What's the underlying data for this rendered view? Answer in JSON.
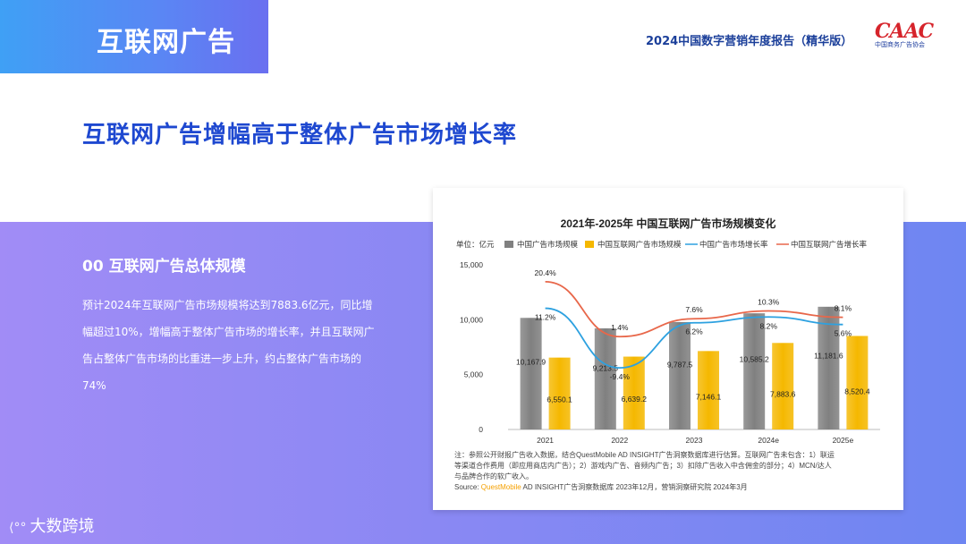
{
  "header": {
    "tab_title": "互联网广告",
    "report_title": "2024中国数字营销年度报告（精华版）",
    "logo_text": "CAAC",
    "logo_sub": "中国商务广告协会"
  },
  "headline": "互联网广告增幅高于整体广告市场增长率",
  "section": {
    "title": "00  互联网广告总体规模",
    "paragraph": "预计2024年互联网广告市场规模将达到7883.6亿元，同比增幅超过10%，增幅高于整体广告市场的增长率，并且互联网广告占整体广告市场的比重进一步上升，约占整体广告市场的74%"
  },
  "footer": {
    "brand": "大数跨境"
  },
  "colors": {
    "accent_blue": "#1e48d0",
    "gray_bar": "#808080",
    "yellow_bar": "#f5b800",
    "blue_line": "#2da1e0",
    "orange_line": "#e8674a"
  },
  "chart_data": {
    "type": "bar",
    "title": "2021年-2025年 中国互联网广告市场规模变化",
    "unit_label": "单位：亿元",
    "categories": [
      "2021",
      "2022",
      "2023",
      "2024e",
      "2025e"
    ],
    "ylim": [
      0,
      15000
    ],
    "yticks": [
      "15,000",
      "10,000",
      "5,000",
      "0"
    ],
    "ytick_values": [
      15000,
      10000,
      5000,
      0
    ],
    "series": [
      {
        "name": "中国广告市场规模",
        "kind": "bar",
        "color": "#808080",
        "values": [
          10167.9,
          9213.5,
          9787.5,
          10585.2,
          11181.6
        ],
        "labels": [
          "10,167.9",
          "9,213.5",
          "9,787.5",
          "10,585.2",
          "11,181.6"
        ]
      },
      {
        "name": "中国互联网广告市场规模",
        "kind": "bar",
        "color": "#f5b800",
        "values": [
          6550.1,
          6639.2,
          7146.1,
          7883.6,
          8520.4
        ],
        "labels": [
          "6,550.1",
          "6,639.2",
          "7,146.1",
          "7,883.6",
          "8,520.4"
        ]
      },
      {
        "name": "中国广告市场增长率",
        "kind": "line",
        "color": "#2da1e0",
        "values": [
          11.2,
          -9.4,
          6.2,
          8.2,
          5.6
        ],
        "labels": [
          "11.2%",
          "-9.4%",
          "6.2%",
          "8.2%",
          "5.6%"
        ]
      },
      {
        "name": "中国互联网广告增长率",
        "kind": "line",
        "color": "#e8674a",
        "values": [
          20.4,
          1.4,
          7.6,
          10.3,
          8.1
        ],
        "labels": [
          "20.4%",
          "1.4%",
          "7.6%",
          "10.3%",
          "8.1%"
        ]
      }
    ],
    "note_lines": [
      "注：参照公开财报广告收入数据，结合QuestMobile AD INSIGHT广告洞察数据库进行估算。互联网广告未包含：1）联运",
      "等渠道合作费用（即应用商店内广告）；2）游戏内广告、音频内广告；3）扣除广告收入中含佣金的部分；4）MCN/达人",
      "与品牌合作的软广收入。"
    ],
    "source_prefix": "Source: ",
    "source_brand": "QuestMobile",
    "source_rest": " AD INSIGHT广告洞察数据库 2023年12月，营销洞察研究院 2024年3月"
  }
}
